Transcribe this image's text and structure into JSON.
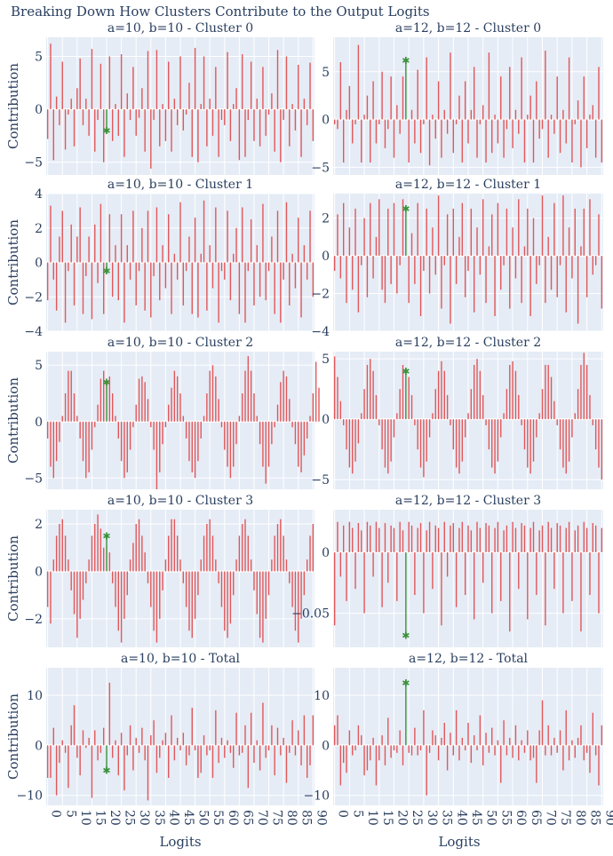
{
  "title": "Breaking Down How Clusters Contribute to the Output Logits",
  "xlabel": "Logits",
  "ylabel": "Contribution",
  "colors": {
    "bar": "#e15759",
    "highlight": "#3a923a",
    "panel_bg": "#e5ecf6",
    "grid": "#ffffff",
    "text": "#2a3f5f"
  },
  "x_ticks": [
    0,
    5,
    10,
    15,
    20,
    25,
    30,
    35,
    40,
    45,
    50,
    55,
    60,
    65,
    70,
    75,
    80,
    85,
    90
  ],
  "chart_data": [
    {
      "type": "bar",
      "title": "a=10, b=10 - Cluster 0",
      "ylim": [
        -6.2,
        6.8
      ],
      "yticks": [
        5,
        0,
        -5
      ],
      "highlight_x": 20,
      "values": [
        -2.8,
        6.2,
        -4.8,
        1.2,
        -1.5,
        4.5,
        -3.8,
        -0.5,
        1.0,
        -3.5,
        2.0,
        4.8,
        -1.5,
        1.0,
        -2.5,
        5.7,
        -4.0,
        -1.0,
        4.3,
        -5.0,
        -2.0,
        5.0,
        -3.0,
        0.5,
        -2.5,
        5.2,
        -4.5,
        1.5,
        -1.0,
        4.0,
        -2.5,
        -0.8,
        2.0,
        -4.0,
        5.5,
        -5.6,
        -1.0,
        5.6,
        -3.5,
        0.5,
        -3.0,
        4.5,
        -4.0,
        1.0,
        -1.5,
        5.0,
        -2.0,
        -0.5,
        2.5,
        -4.5,
        5.8,
        -5.0,
        0.5,
        5.0,
        -3.5,
        1.0,
        -2.5,
        4.0,
        -4.5,
        -1.0,
        -1.5,
        5.4,
        -3.0,
        0.5,
        2.0,
        -4.8,
        5.2,
        -4.5,
        -1.0,
        4.5,
        -3.0,
        1.0,
        -3.5,
        4.0,
        -2.5,
        -0.5,
        1.5,
        -4.0,
        5.6,
        -5.0,
        -1.0,
        5.0,
        -3.5,
        0.5,
        -2.0,
        4.2,
        -4.5,
        1.0,
        -1.5,
        4.4,
        -3.0
      ]
    },
    {
      "type": "bar",
      "title": "a=12, b=12 - Cluster 0",
      "ylim": [
        -5.8,
        8.6
      ],
      "yticks": [
        5,
        0,
        -5
      ],
      "highlight_x": 24,
      "values": [
        -0.5,
        -1.0,
        6.0,
        -4.5,
        1.0,
        3.5,
        -2.5,
        -0.5,
        7.8,
        -4.5,
        0.5,
        2.5,
        -4.5,
        4.0,
        -2.5,
        -0.5,
        5.0,
        -3.0,
        -1.0,
        4.5,
        -4.0,
        1.5,
        -1.5,
        4.5,
        6.2,
        -4.5,
        1.0,
        -2.5,
        5.2,
        -3.5,
        -0.5,
        6.5,
        -4.8,
        0.5,
        -2.0,
        4.0,
        -4.0,
        1.0,
        -1.5,
        7.0,
        -3.5,
        -0.5,
        2.5,
        -4.5,
        4.0,
        -2.5,
        1.0,
        5.5,
        -4.0,
        -0.5,
        1.5,
        -4.5,
        7.0,
        -3.5,
        0.5,
        -2.5,
        4.5,
        -4.0,
        -1.0,
        5.5,
        -3.0,
        1.0,
        -1.5,
        6.5,
        -4.5,
        0.5,
        2.5,
        -4.5,
        4.0,
        -2.0,
        -1.0,
        7.2,
        -4.0,
        0.5,
        -1.5,
        4.5,
        -3.5,
        1.0,
        -2.5,
        6.5,
        -4.5,
        -0.5,
        2.0,
        -5.0,
        4.5,
        -3.0,
        0.5,
        1.5,
        -4.0,
        5.5,
        -4.5
      ]
    },
    {
      "type": "bar",
      "title": "a=10, b=10 - Cluster 1",
      "ylim": [
        -4.0,
        4.0
      ],
      "yticks": [
        4,
        2,
        0,
        -2,
        -4
      ],
      "highlight_x": 20,
      "values": [
        -2.2,
        3.3,
        -1.0,
        -2.8,
        1.5,
        3.0,
        -3.5,
        -0.5,
        2.2,
        -2.5,
        1.5,
        3.2,
        -3.0,
        -0.8,
        1.5,
        -3.3,
        2.2,
        -1.2,
        3.4,
        -3.0,
        -0.5,
        2.8,
        -2.0,
        1.0,
        -2.2,
        2.8,
        -3.5,
        1.0,
        -1.0,
        3.0,
        -2.5,
        -0.5,
        2.0,
        -2.8,
        3.0,
        -3.2,
        -0.8,
        3.2,
        -2.2,
        1.0,
        -1.5,
        2.8,
        -3.0,
        0.5,
        -1.0,
        3.5,
        -2.5,
        -0.5,
        1.5,
        -3.0,
        2.6,
        -3.2,
        0.5,
        3.6,
        -2.8,
        1.0,
        -1.5,
        3.2,
        -3.5,
        -0.5,
        -1.0,
        3.0,
        -2.2,
        0.5,
        2.0,
        -3.0,
        3.2,
        -3.5,
        -0.5,
        2.5,
        -2.5,
        1.0,
        -2.0,
        3.4,
        -2.2,
        -0.5,
        1.5,
        -3.0,
        3.0,
        -3.5,
        -1.0,
        3.5,
        -2.5,
        0.5,
        -1.5,
        2.6,
        -3.2,
        1.0,
        -1.0,
        3.0,
        -2.0
      ]
    },
    {
      "type": "bar",
      "title": "a=12, b=12 - Cluster 1",
      "ylim": [
        -4.0,
        3.3
      ],
      "yticks": [
        2,
        0,
        -2,
        -4
      ],
      "highlight_x": 24,
      "values": [
        -0.8,
        2.2,
        -1.2,
        2.8,
        -2.5,
        1.5,
        -1.8,
        2.5,
        -3.0,
        -0.5,
        2.0,
        -2.2,
        2.8,
        -1.2,
        1.0,
        3.0,
        -1.8,
        -2.5,
        2.5,
        -1.5,
        2.8,
        -2.0,
        -0.5,
        3.0,
        2.5,
        -2.5,
        1.2,
        -1.5,
        2.8,
        -3.2,
        -0.8,
        2.5,
        -2.0,
        1.5,
        -1.0,
        3.2,
        -2.8,
        -0.5,
        2.2,
        -3.6,
        2.5,
        -1.5,
        1.0,
        2.8,
        -2.2,
        -0.8,
        2.5,
        -3.0,
        1.5,
        -1.0,
        3.0,
        -2.5,
        0.5,
        2.2,
        -3.2,
        2.8,
        -1.8,
        -0.5,
        2.5,
        -2.8,
        1.5,
        -1.2,
        3.0,
        -2.5,
        0.5,
        2.5,
        -3.2,
        2.0,
        -1.5,
        -0.5,
        3.2,
        -2.5,
        1.0,
        -1.8,
        2.8,
        -2.2,
        -0.5,
        3.2,
        -3.0,
        1.5,
        -1.2,
        2.5,
        -3.6,
        0.5,
        2.5,
        -2.2,
        3.0,
        -1.0,
        -0.5,
        2.2,
        -2.8
      ]
    },
    {
      "type": "bar",
      "title": "a=10, b=10 - Cluster 2",
      "ylim": [
        -6.0,
        6.2
      ],
      "yticks": [
        5,
        0,
        -5
      ],
      "highlight_x": 20,
      "values": [
        -1.5,
        -4.0,
        -5.0,
        -3.5,
        -1.8,
        0.5,
        2.5,
        4.5,
        4.5,
        2.5,
        0.5,
        -1.5,
        -3.5,
        -5.0,
        -4.5,
        -2.5,
        -0.5,
        1.5,
        3.8,
        4.5,
        3.5,
        4.0,
        2.5,
        0.5,
        -1.5,
        -3.5,
        -5.0,
        -4.5,
        -2.5,
        -0.5,
        1.5,
        3.8,
        4.0,
        3.5,
        2.0,
        -0.5,
        -2.5,
        -6.0,
        -4.5,
        -2.0,
        -0.5,
        1.5,
        3.0,
        4.5,
        4.0,
        2.5,
        0.5,
        -1.5,
        -3.5,
        -4.5,
        -5.0,
        -3.5,
        -1.5,
        0.5,
        2.5,
        4.5,
        5.0,
        4.0,
        2.0,
        -0.5,
        -2.5,
        -4.0,
        -5.0,
        -4.0,
        -2.0,
        0.5,
        2.5,
        4.5,
        5.8,
        4.5,
        2.5,
        0.5,
        -2.0,
        -4.0,
        -5.5,
        -4.0,
        -2.0,
        -0.5,
        1.5,
        3.5,
        4.5,
        4.0,
        2.0,
        -0.5,
        -2.0,
        -4.0,
        -4.5,
        -3.0,
        -1.5,
        0.5,
        2.5,
        5.3,
        3.0
      ]
    },
    {
      "type": "bar",
      "title": "a=12, b=12 - Cluster 2",
      "ylim": [
        -5.8,
        5.6
      ],
      "yticks": [
        5,
        0,
        -5
      ],
      "highlight_x": 24,
      "values": [
        5.2,
        3.5,
        1.5,
        -0.5,
        -2.5,
        -4.0,
        -4.5,
        -3.5,
        -2.0,
        0.5,
        2.5,
        4.5,
        5.0,
        4.0,
        2.0,
        -0.5,
        -2.5,
        -4.0,
        -4.5,
        -3.5,
        -1.5,
        0.5,
        2.5,
        4.5,
        4.0,
        3.5,
        2.0,
        -0.5,
        -2.5,
        -4.0,
        -4.8,
        -3.5,
        -1.5,
        0.5,
        2.5,
        4.0,
        4.8,
        4.0,
        2.0,
        -0.5,
        -2.5,
        -4.0,
        -4.5,
        -3.5,
        -1.5,
        0.5,
        2.5,
        4.5,
        5.0,
        4.0,
        2.0,
        -0.5,
        -2.5,
        -4.0,
        -4.5,
        -3.5,
        -1.5,
        0.5,
        2.5,
        4.5,
        4.8,
        4.0,
        2.0,
        -0.5,
        -2.5,
        -4.0,
        -4.5,
        -3.5,
        -1.5,
        0.5,
        2.5,
        4.5,
        4.5,
        3.5,
        1.5,
        -0.5,
        -2.5,
        -4.0,
        -4.5,
        -3.5,
        -1.5,
        0.5,
        2.5,
        4.5,
        5.5,
        4.5,
        2.0,
        -0.5,
        -2.5,
        -4.0,
        -5.0
      ]
    },
    {
      "type": "bar",
      "title": "a=10, b=10 - Cluster 3",
      "ylim": [
        -3.2,
        2.6
      ],
      "yticks": [
        2,
        0,
        -2
      ],
      "highlight_x": 20,
      "values": [
        -1.5,
        -2.2,
        0.5,
        1.5,
        2.0,
        2.2,
        1.5,
        0.5,
        -0.8,
        -1.8,
        -2.8,
        -2.0,
        -1.2,
        -0.5,
        0.5,
        1.5,
        2.0,
        2.4,
        1.8,
        1.0,
        1.5,
        0.8,
        -0.5,
        -1.5,
        -2.5,
        -3.0,
        -2.0,
        -1.0,
        0.5,
        1.2,
        2.0,
        2.2,
        1.5,
        0.8,
        -0.5,
        -1.5,
        -2.5,
        -3.0,
        -2.0,
        -0.8,
        0.5,
        1.5,
        2.2,
        2.2,
        1.5,
        0.5,
        -0.5,
        -1.5,
        -2.5,
        -2.8,
        -2.0,
        -1.0,
        0.5,
        1.5,
        2.0,
        2.2,
        1.5,
        0.5,
        -0.5,
        -1.5,
        -2.5,
        -2.8,
        -2.2,
        -1.0,
        0.5,
        1.5,
        2.0,
        2.2,
        1.5,
        0.5,
        -0.8,
        -1.8,
        -2.8,
        -3.0,
        -2.0,
        -1.0,
        0.5,
        1.5,
        2.0,
        2.2,
        1.5,
        0.5,
        -0.5,
        -1.5,
        -2.5,
        -3.0,
        -2.0,
        -1.0,
        0.5,
        1.5,
        2.0
      ]
    },
    {
      "type": "bar",
      "title": "a=12, b=12 - Cluster 3",
      "ylim": [
        -0.078,
        0.035
      ],
      "yticks": [
        0,
        -0.05
      ],
      "highlight_x": 24,
      "values": [
        -0.06,
        0.025,
        -0.02,
        0.022,
        -0.04,
        0.025,
        0.02,
        -0.03,
        0.024,
        0.018,
        -0.05,
        0.025,
        0.022,
        -0.02,
        0.025,
        0.02,
        -0.045,
        0.024,
        -0.025,
        0.022,
        0.02,
        -0.04,
        0.025,
        0.018,
        -0.068,
        0.025,
        0.022,
        -0.035,
        0.02,
        0.024,
        -0.05,
        0.018,
        0.025,
        -0.03,
        0.022,
        0.02,
        -0.06,
        0.025,
        -0.02,
        0.022,
        0.024,
        -0.045,
        0.02,
        0.025,
        -0.035,
        0.022,
        0.018,
        -0.055,
        0.025,
        0.02,
        -0.025,
        0.024,
        0.022,
        -0.05,
        0.02,
        0.025,
        -0.04,
        0.018,
        0.022,
        -0.065,
        0.025,
        0.02,
        -0.03,
        0.024,
        0.022,
        -0.055,
        0.02,
        0.025,
        -0.035,
        0.018,
        0.022,
        -0.06,
        0.025,
        0.02,
        -0.03,
        0.024,
        0.022,
        -0.05,
        0.02,
        0.025,
        -0.04,
        0.018,
        0.022,
        -0.065,
        0.025,
        0.02,
        -0.035,
        0.024,
        0.022,
        -0.05,
        0.02
      ]
    },
    {
      "type": "bar",
      "title": "a=10, b=10 - Total",
      "ylim": [
        -12.0,
        15.5
      ],
      "yticks": [
        10,
        0,
        -10
      ],
      "highlight_x": 20,
      "values": [
        -6.5,
        -6.5,
        3.5,
        -10.0,
        -3.5,
        1.0,
        -1.5,
        -8.5,
        4.0,
        8.0,
        -2.5,
        -6.0,
        3.0,
        -0.5,
        1.5,
        -10.5,
        3.0,
        -3.0,
        -1.5,
        3.5,
        -5.0,
        12.5,
        -2.5,
        1.0,
        -6.0,
        2.5,
        -9.0,
        -2.0,
        4.0,
        -5.0,
        1.5,
        -1.5,
        3.5,
        -3.0,
        -11.0,
        2.0,
        5.0,
        -5.5,
        -2.5,
        1.0,
        2.5,
        -6.5,
        6.0,
        -3.0,
        1.5,
        -1.0,
        2.5,
        -4.0,
        -2.0,
        7.5,
        -1.0,
        -6.5,
        -5.5,
        2.0,
        -2.0,
        -1.0,
        -6.5,
        7.0,
        -3.5,
        1.5,
        -2.5,
        1.0,
        -1.5,
        -4.5,
        6.5,
        -2.0,
        -1.5,
        4.0,
        -8.5,
        6.5,
        -3.5,
        1.0,
        -5.0,
        8.5,
        -2.5,
        -1.0,
        4.0,
        -6.0,
        3.5,
        -2.0,
        1.5,
        -7.5,
        -1.5,
        5.0,
        -2.0,
        3.0,
        -4.0,
        6.0,
        -6.5,
        -4.0,
        6.0
      ]
    },
    {
      "type": "bar",
      "title": "a=12, b=12 - Total",
      "ylim": [
        -12.0,
        15.5
      ],
      "yticks": [
        10,
        0,
        -10
      ],
      "highlight_x": 24,
      "values": [
        4.0,
        6.0,
        -8.0,
        -3.5,
        -5.5,
        3.0,
        -2.0,
        -1.0,
        4.0,
        2.0,
        -6.0,
        -5.0,
        -3.0,
        1.5,
        -8.0,
        -3.0,
        2.0,
        -4.0,
        5.5,
        -2.5,
        -1.0,
        -1.5,
        3.0,
        -4.0,
        12.5,
        -1.5,
        -2.0,
        3.5,
        -2.0,
        -1.0,
        7.0,
        -10.0,
        -1.5,
        3.0,
        2.0,
        -3.0,
        1.5,
        4.5,
        -5.0,
        2.5,
        -2.0,
        7.0,
        -3.0,
        1.5,
        -1.0,
        4.5,
        -3.5,
        2.0,
        -1.0,
        6.0,
        -4.0,
        2.5,
        -1.5,
        3.5,
        -2.0,
        1.0,
        -7.5,
        5.0,
        -2.0,
        1.5,
        -2.5,
        4.0,
        -3.0,
        1.0,
        -1.5,
        3.0,
        -3.0,
        -2.5,
        -7.5,
        3.0,
        9.0,
        -2.0,
        4.0,
        -2.0,
        1.5,
        -1.5,
        3.0,
        -5.0,
        7.0,
        -3.0,
        1.0,
        -2.5,
        1.5,
        4.0,
        -3.0,
        -1.5,
        -5.5,
        6.5,
        -2.0,
        -8.0,
        4.0
      ]
    }
  ]
}
